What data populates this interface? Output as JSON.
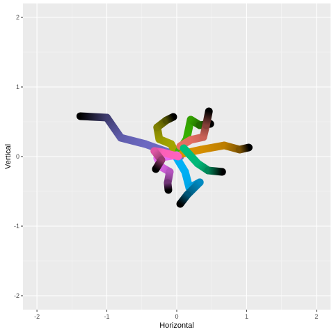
{
  "chart_data": {
    "type": "line",
    "title": "",
    "xlabel": "Horizontal",
    "ylabel": "Vertical",
    "xlim": [
      -2.0,
      2.0
    ],
    "ylim": [
      -2.0,
      2.0
    ],
    "x_ticks": [
      -2,
      -1,
      0,
      1,
      2
    ],
    "y_ticks": [
      -2,
      -1,
      0,
      1,
      2
    ],
    "x_tick_labels": [
      "-2",
      "-1",
      "0",
      "1",
      "2"
    ],
    "y_tick_labels": [
      "-2",
      "-1",
      "0",
      "1",
      "2"
    ],
    "grid": true,
    "legend": "none",
    "colors": {
      "panel_background": "#ebebeb",
      "grid_major": "#ffffff",
      "grid_minor": "#f5f5f5",
      "tick_text": "#4d4d4d"
    },
    "series": [
      {
        "color": "#6e6ac4",
        "end_color": "#000000",
        "points": [
          [
            0.05,
            0.0
          ],
          [
            -0.45,
            0.18
          ],
          [
            -0.8,
            0.27
          ],
          [
            -1.0,
            0.56
          ],
          [
            -1.38,
            0.58
          ]
        ]
      },
      {
        "color": "#a3a500",
        "end_color": "#000000",
        "points": [
          [
            0.0,
            0.02
          ],
          [
            -0.08,
            0.18
          ],
          [
            -0.25,
            0.25
          ],
          [
            -0.28,
            0.42
          ],
          [
            -0.15,
            0.52
          ],
          [
            -0.05,
            0.57
          ]
        ]
      },
      {
        "color": "#39b600",
        "end_color": "#000000",
        "points": [
          [
            0.03,
            0.08
          ],
          [
            0.14,
            0.25
          ],
          [
            0.2,
            0.53
          ],
          [
            0.33,
            0.45
          ],
          [
            0.48,
            0.47
          ]
        ]
      },
      {
        "color": "#e76f63",
        "end_color": "#000000",
        "points": [
          [
            0.05,
            0.15
          ],
          [
            0.2,
            0.24
          ],
          [
            0.38,
            0.28
          ],
          [
            0.42,
            0.45
          ],
          [
            0.46,
            0.65
          ]
        ]
      },
      {
        "color": "#d89000",
        "end_color": "#000000",
        "points": [
          [
            0.08,
            0.04
          ],
          [
            0.35,
            0.1
          ],
          [
            0.68,
            0.16
          ],
          [
            0.9,
            0.1
          ],
          [
            1.03,
            0.13
          ]
        ]
      },
      {
        "color": "#00bf7d",
        "end_color": "#000000",
        "points": [
          [
            0.1,
            0.12
          ],
          [
            0.3,
            -0.1
          ],
          [
            0.45,
            -0.2
          ],
          [
            0.65,
            -0.22
          ]
        ]
      },
      {
        "color": "#00b0f6",
        "end_color": "#000000",
        "points": [
          [
            0.0,
            -0.02
          ],
          [
            0.12,
            -0.22
          ],
          [
            0.18,
            -0.45
          ],
          [
            0.33,
            -0.37
          ],
          [
            0.15,
            -0.55
          ],
          [
            0.05,
            -0.68
          ]
        ]
      },
      {
        "color": "#e76bf3",
        "end_color": "#000000",
        "points": [
          [
            0.0,
            0.02
          ],
          [
            -0.28,
            -0.02
          ],
          [
            -0.22,
            -0.15
          ],
          [
            -0.1,
            -0.22
          ],
          [
            -0.13,
            -0.38
          ],
          [
            -0.12,
            -0.48
          ]
        ]
      },
      {
        "color": "#ff62bc",
        "end_color": "#000000",
        "points": [
          [
            0.02,
            0.0
          ],
          [
            -0.2,
            0.06
          ],
          [
            -0.32,
            0.08
          ],
          [
            -0.22,
            -0.05
          ],
          [
            -0.3,
            -0.18
          ]
        ]
      }
    ]
  }
}
